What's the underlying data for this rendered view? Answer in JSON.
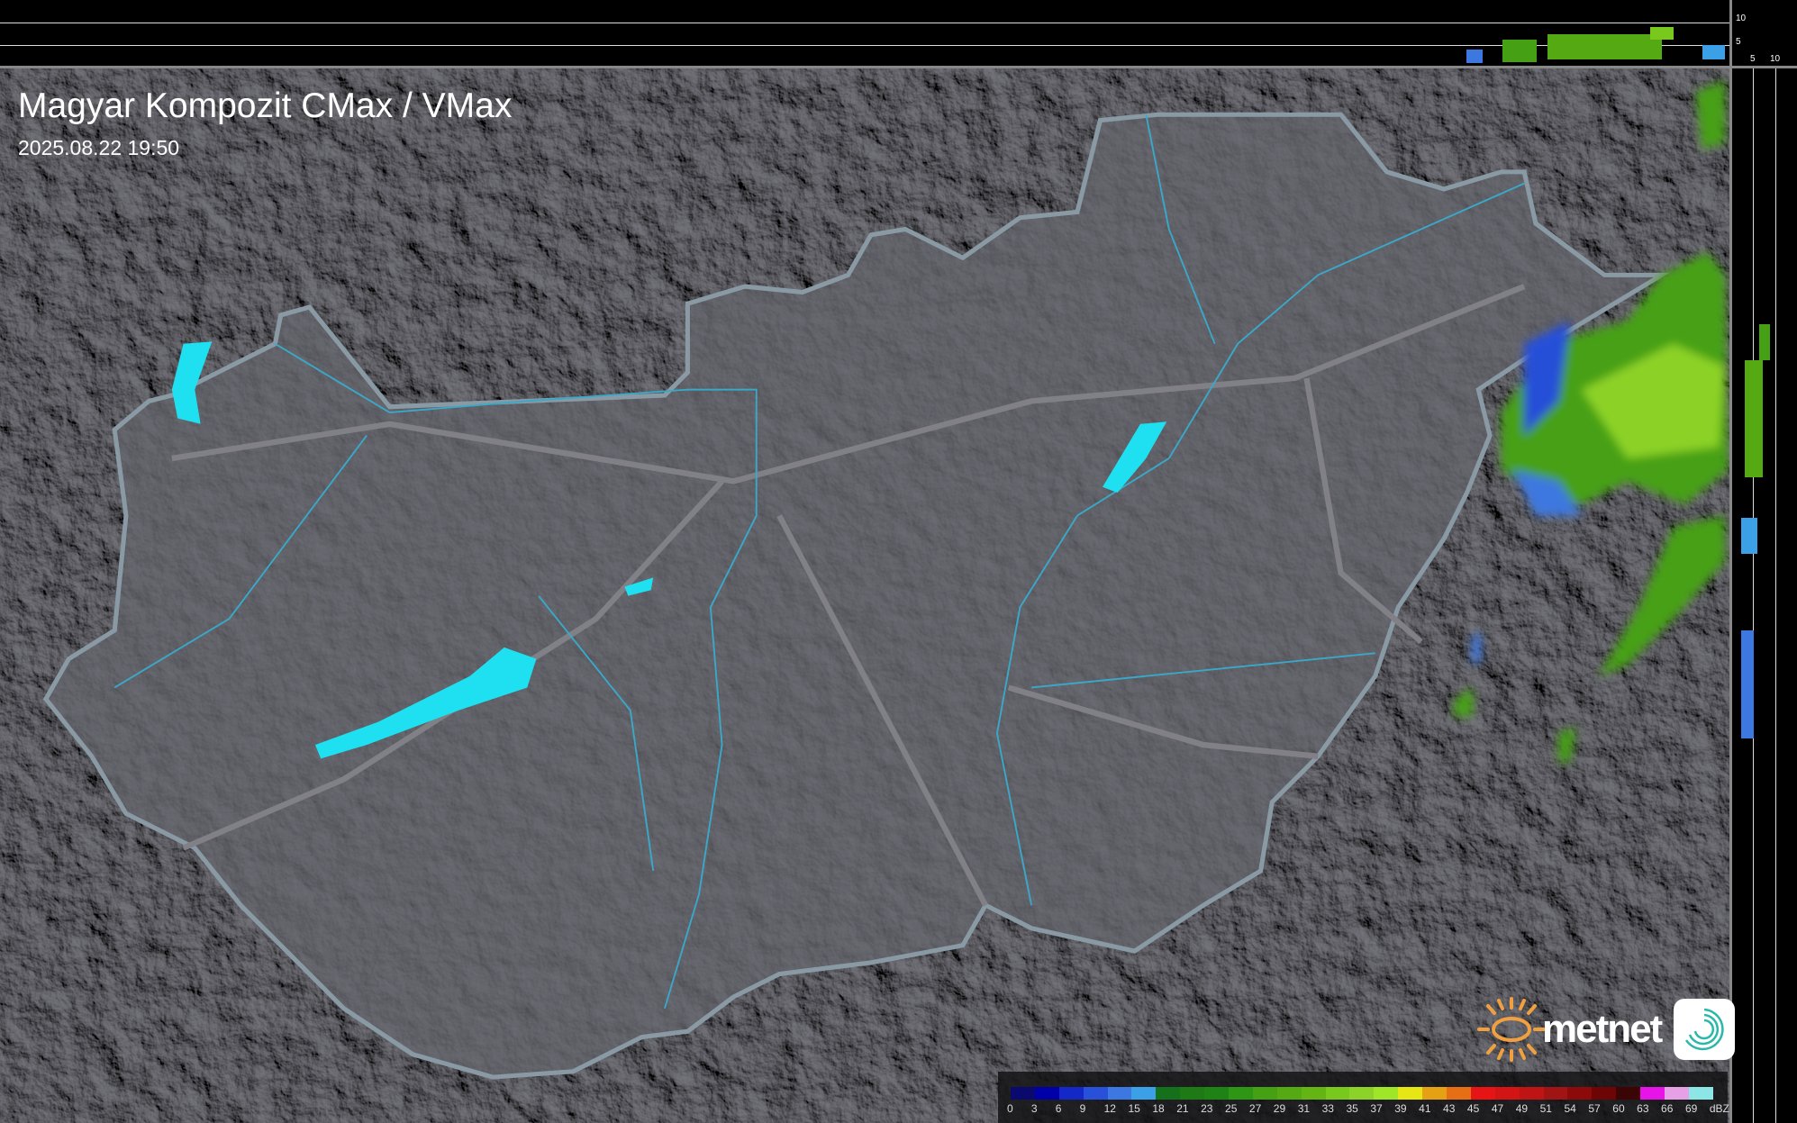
{
  "header": {
    "title": "Magyar Kompozit CMax / VMax",
    "timestamp": "2025.08.22 19:50"
  },
  "profile_axes": {
    "top_ticks": [
      "10",
      "5"
    ],
    "right_ticks": [
      "5",
      "10"
    ]
  },
  "legend": {
    "unit": "dBZ",
    "labels": [
      "0",
      "3",
      "6",
      "9",
      "12",
      "15",
      "18",
      "21",
      "23",
      "25",
      "27",
      "29",
      "31",
      "33",
      "35",
      "37",
      "39",
      "41",
      "43",
      "45",
      "47",
      "49",
      "51",
      "54",
      "57",
      "60",
      "63",
      "66",
      "69"
    ],
    "colors": [
      "#0a0a6e",
      "#0000a8",
      "#1428c8",
      "#2850d8",
      "#3c78e0",
      "#3ca0e6",
      "#14701a",
      "#1e7a14",
      "#1e8214",
      "#2d9614",
      "#46a014",
      "#55aa14",
      "#64b414",
      "#78c81e",
      "#8cd228",
      "#a0e628",
      "#e6e614",
      "#e6a014",
      "#e66e14",
      "#e61414",
      "#d21414",
      "#be1414",
      "#a01414",
      "#8c0a0a",
      "#6e0505",
      "#3c0505",
      "#e614e6",
      "#e6a0e6",
      "#8ce6e6"
    ]
  },
  "branding": {
    "logo_text": "metnet",
    "sun_color": "#f0a040",
    "app_icon": "spiral-icon"
  },
  "colors": {
    "country_fill": "#3a3a3e",
    "border": "#8a9aa4",
    "lakes": "#1ee0f0",
    "rivers": "#3aa8c8"
  }
}
